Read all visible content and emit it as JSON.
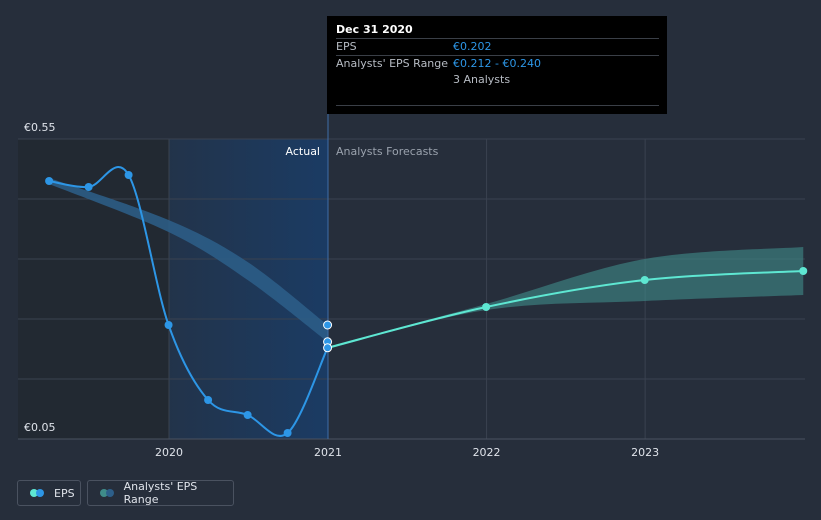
{
  "chart_data": {
    "type": "line",
    "y_axis": {
      "top_label": "€0.55",
      "bottom_label": "€0.05",
      "range": [
        0.05,
        0.55
      ]
    },
    "x_ticks": [
      "2020",
      "2021",
      "2022",
      "2023"
    ],
    "region_labels": {
      "actual": "Actual",
      "forecast": "Analysts Forecasts"
    },
    "series": [
      {
        "name": "EPS",
        "color": "#2d96e6",
        "points": [
          {
            "x": "2019-03-31",
            "y": 0.48
          },
          {
            "x": "2019-06-30",
            "y": 0.47
          },
          {
            "x": "2019-09-30",
            "y": 0.49
          },
          {
            "x": "2019-12-31",
            "y": 0.24
          },
          {
            "x": "2020-03-31",
            "y": 0.115
          },
          {
            "x": "2020-06-30",
            "y": 0.09
          },
          {
            "x": "2020-09-30",
            "y": 0.06
          },
          {
            "x": "2020-12-31",
            "y": 0.202
          }
        ]
      },
      {
        "name": "EPS forecast",
        "color": "#5ee7d2",
        "points": [
          {
            "x": "2020-12-31",
            "y": 0.202
          },
          {
            "x": "2021-12-31",
            "y": 0.27
          },
          {
            "x": "2022-12-31",
            "y": 0.315
          },
          {
            "x": "2023-12-31",
            "y": 0.33
          }
        ]
      }
    ],
    "ranges": [
      {
        "name": "Analysts' EPS Range",
        "color": "#2d5f8a",
        "points": [
          {
            "x": "2019-03-31",
            "low": 0.475,
            "high": 0.485
          },
          {
            "x": "2019-12-31",
            "low": 0.395,
            "high": 0.415
          },
          {
            "x": "2020-06-30",
            "low": 0.315,
            "high": 0.345
          },
          {
            "x": "2020-12-31",
            "low": 0.212,
            "high": 0.24
          }
        ]
      },
      {
        "name": "Analysts' EPS Range forecast",
        "color": "#3f8c8a",
        "points": [
          {
            "x": "2020-12-31",
            "low": 0.2,
            "high": 0.204
          },
          {
            "x": "2021-12-31",
            "low": 0.265,
            "high": 0.275
          },
          {
            "x": "2022-12-31",
            "low": 0.28,
            "high": 0.35
          },
          {
            "x": "2023-12-31",
            "low": 0.29,
            "high": 0.37
          }
        ]
      }
    ]
  },
  "tooltip": {
    "date": "Dec 31 2020",
    "eps_label": "EPS",
    "eps_value": "€0.202",
    "range_label": "Analysts' EPS Range",
    "range_value": "€0.212 - €0.240",
    "analysts": "3 Analysts"
  },
  "legend": {
    "eps": {
      "label": "EPS",
      "colors": [
        "#5ee7d2",
        "#2d96e6"
      ]
    },
    "range": {
      "label": "Analysts' EPS Range",
      "colors": [
        "#3f8c8a",
        "#2d5f8a"
      ]
    }
  }
}
